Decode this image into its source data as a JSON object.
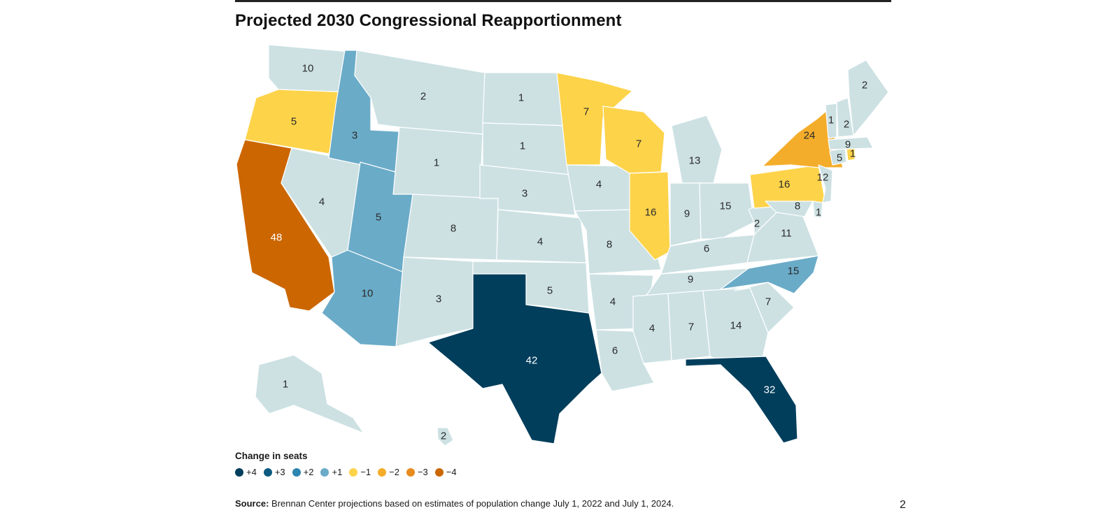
{
  "title": "Projected 2030 Congressional Reapportionment",
  "legend": {
    "title": "Change in seats",
    "items": [
      {
        "label": "+4",
        "color": "#003e5c"
      },
      {
        "label": "+3",
        "color": "#0c5a80"
      },
      {
        "label": "+2",
        "color": "#2d86b0"
      },
      {
        "label": "+1",
        "color": "#6aabc8"
      },
      {
        "label": "−1",
        "color": "#fdd34a"
      },
      {
        "label": "−2",
        "color": "#f4ad2b"
      },
      {
        "label": "−3",
        "color": "#e68b1e"
      },
      {
        "label": "−4",
        "color": "#cc6600"
      }
    ]
  },
  "colors": {
    "no_change": "#cde1e3",
    "plus4": "#003e5c",
    "plus1": "#6aabc8",
    "minus1": "#fdd34a",
    "minus2": "#f4ad2b",
    "minus4": "#cc6600"
  },
  "states": [
    {
      "id": "WA",
      "seats": "10",
      "change": 0
    },
    {
      "id": "OR",
      "seats": "5",
      "change": -1
    },
    {
      "id": "CA",
      "seats": "48",
      "change": -4
    },
    {
      "id": "NV",
      "seats": "4",
      "change": 0
    },
    {
      "id": "ID",
      "seats": "3",
      "change": 1
    },
    {
      "id": "MT",
      "seats": "2",
      "change": 0
    },
    {
      "id": "WY",
      "seats": "1",
      "change": 0
    },
    {
      "id": "UT",
      "seats": "5",
      "change": 1
    },
    {
      "id": "AZ",
      "seats": "10",
      "change": 1
    },
    {
      "id": "CO",
      "seats": "8",
      "change": 0
    },
    {
      "id": "NM",
      "seats": "3",
      "change": 0
    },
    {
      "id": "ND",
      "seats": "1",
      "change": 0
    },
    {
      "id": "SD",
      "seats": "1",
      "change": 0
    },
    {
      "id": "NE",
      "seats": "3",
      "change": 0
    },
    {
      "id": "KS",
      "seats": "4",
      "change": 0
    },
    {
      "id": "OK",
      "seats": "5",
      "change": 0
    },
    {
      "id": "TX",
      "seats": "42",
      "change": 4
    },
    {
      "id": "MN",
      "seats": "7",
      "change": -1
    },
    {
      "id": "IA",
      "seats": "4",
      "change": 0
    },
    {
      "id": "MO",
      "seats": "8",
      "change": 0
    },
    {
      "id": "AR",
      "seats": "4",
      "change": 0
    },
    {
      "id": "LA",
      "seats": "6",
      "change": 0
    },
    {
      "id": "WI",
      "seats": "7",
      "change": -1
    },
    {
      "id": "IL",
      "seats": "16",
      "change": -1
    },
    {
      "id": "MI",
      "seats": "13",
      "change": 0
    },
    {
      "id": "IN",
      "seats": "9",
      "change": 0
    },
    {
      "id": "OH",
      "seats": "15",
      "change": 0
    },
    {
      "id": "KY",
      "seats": "6",
      "change": 0
    },
    {
      "id": "TN",
      "seats": "9",
      "change": 0
    },
    {
      "id": "MS",
      "seats": "4",
      "change": 0
    },
    {
      "id": "AL",
      "seats": "7",
      "change": 0
    },
    {
      "id": "GA",
      "seats": "14",
      "change": 0
    },
    {
      "id": "FL",
      "seats": "32",
      "change": 4
    },
    {
      "id": "SC",
      "seats": "7",
      "change": 0
    },
    {
      "id": "NC",
      "seats": "15",
      "change": 1
    },
    {
      "id": "VA",
      "seats": "11",
      "change": 0
    },
    {
      "id": "WV",
      "seats": "2",
      "change": 0
    },
    {
      "id": "PA",
      "seats": "16",
      "change": -1
    },
    {
      "id": "NY",
      "seats": "24",
      "change": -2
    },
    {
      "id": "MD",
      "seats": "8",
      "change": 0
    },
    {
      "id": "DE",
      "seats": "1",
      "change": 0
    },
    {
      "id": "NJ",
      "seats": "12",
      "change": 0
    },
    {
      "id": "CT",
      "seats": "5",
      "change": 0
    },
    {
      "id": "RI",
      "seats": "1",
      "change": -1
    },
    {
      "id": "MA",
      "seats": "9",
      "change": 0
    },
    {
      "id": "VT",
      "seats": "1",
      "change": 0
    },
    {
      "id": "NH",
      "seats": "2",
      "change": 0
    },
    {
      "id": "ME",
      "seats": "2",
      "change": 0
    },
    {
      "id": "AK",
      "seats": "1",
      "change": 0
    },
    {
      "id": "HI",
      "seats": "2",
      "change": 0
    }
  ],
  "source": {
    "label": "Source:",
    "text": " Brennan Center projections based on estimates of population change July 1, 2022 and July 1, 2024."
  },
  "page_number": "2"
}
